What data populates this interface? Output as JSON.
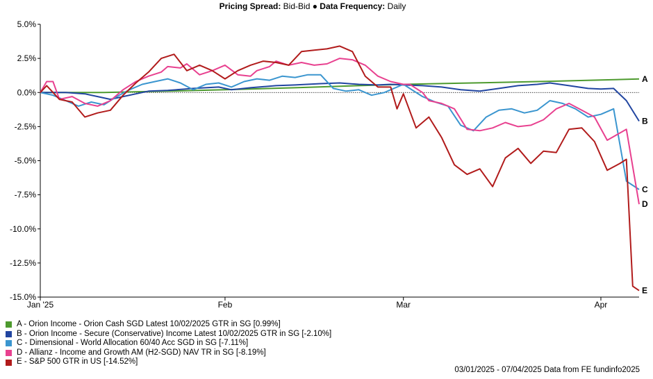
{
  "header": {
    "pricing_label": "Pricing Spread:",
    "pricing_value": " Bid-Bid ● ",
    "frequency_label": "Data Frequency:",
    "frequency_value": " Daily"
  },
  "footer": {
    "text": "03/01/2025 - 07/04/2025 Data from FE fundinfo2025"
  },
  "chart_data": {
    "type": "line",
    "title": "",
    "xlabel": "",
    "ylabel": "",
    "x_ticks": [
      {
        "label": "Jan '25",
        "day": 0
      },
      {
        "label": "Feb",
        "day": 29
      },
      {
        "label": "Mar",
        "day": 57
      },
      {
        "label": "Apr",
        "day": 88
      }
    ],
    "xlim_days": [
      0,
      94
    ],
    "y_ticks": [
      "5.0%",
      "2.5%",
      "0.0%",
      "-2.5%",
      "-5.0%",
      "-7.5%",
      "-10.0%",
      "-12.5%",
      "-15.0%"
    ],
    "ylim": [
      -15,
      5
    ],
    "zero_line": true,
    "series": [
      {
        "letter": "A",
        "name": "A - Orion Income - Orion Cash SGD Latest 10/02/2025 GTR in SG [0.99%]",
        "color": "#4d9a2e",
        "x": [
          0,
          10,
          20,
          29,
          40,
          50,
          57,
          70,
          80,
          88,
          94
        ],
        "y": [
          0.0,
          0.0,
          0.1,
          0.2,
          0.35,
          0.5,
          0.6,
          0.72,
          0.82,
          0.92,
          0.99
        ]
      },
      {
        "letter": "B",
        "name": "B - Orion Income - Secure (Conservative) Income Latest 10/02/2025 GTR in SG [-2.10%]",
        "color": "#2145a0",
        "x": [
          0,
          4,
          7,
          9,
          11,
          13,
          15,
          17,
          20,
          24,
          28,
          30,
          33,
          37,
          40,
          44,
          47,
          50,
          53,
          55,
          57,
          60,
          63,
          66,
          69,
          72,
          75,
          78,
          80,
          83,
          86,
          88,
          90,
          92,
          94
        ],
        "y": [
          0.0,
          0.0,
          -0.1,
          -0.3,
          -0.5,
          -0.3,
          -0.1,
          0.1,
          0.15,
          0.3,
          0.4,
          0.2,
          0.35,
          0.5,
          0.55,
          0.65,
          0.7,
          0.6,
          0.55,
          0.6,
          0.55,
          0.5,
          0.4,
          0.2,
          0.1,
          0.3,
          0.5,
          0.6,
          0.7,
          0.5,
          0.3,
          0.25,
          0.3,
          -0.6,
          -2.1
        ]
      },
      {
        "letter": "C",
        "name": "C - Dimensional - World Allocation 60/40 Acc SGD in SG [-7.11%]",
        "color": "#3a95cf",
        "x": [
          0,
          2,
          4,
          6,
          8,
          10,
          12,
          14,
          16,
          18,
          20,
          22,
          24,
          26,
          28,
          30,
          32,
          34,
          36,
          38,
          40,
          42,
          44,
          46,
          48,
          50,
          52,
          54,
          56,
          57,
          58,
          60,
          62,
          64,
          66,
          68,
          70,
          72,
          74,
          76,
          78,
          80,
          82,
          84,
          86,
          88,
          90,
          92,
          94
        ],
        "y": [
          0,
          -0.2,
          -0.6,
          -1.0,
          -0.7,
          -0.9,
          -0.3,
          0.2,
          0.6,
          0.8,
          1.0,
          0.7,
          0.2,
          0.6,
          0.7,
          0.4,
          0.8,
          1.0,
          0.9,
          1.2,
          1.1,
          1.3,
          1.3,
          0.3,
          0.1,
          0.2,
          -0.2,
          0.0,
          0.4,
          0.6,
          0.3,
          -0.3,
          -0.7,
          -1.0,
          -2.4,
          -2.8,
          -1.8,
          -1.3,
          -1.2,
          -1.5,
          -1.3,
          -0.6,
          -0.8,
          -1.2,
          -1.8,
          -1.6,
          -1.2,
          -6.5,
          -7.11
        ]
      },
      {
        "letter": "D",
        "name": "D - Allianz - Income and Growth AM (H2-SGD) NAV TR in SG [-8.19%]",
        "color": "#e8408f",
        "x": [
          0,
          1,
          2,
          3,
          5,
          7,
          9,
          11,
          13,
          15,
          17,
          19,
          20,
          22,
          23,
          25,
          27,
          29,
          31,
          33,
          34,
          36,
          37,
          39,
          41,
          43,
          45,
          47,
          49,
          51,
          53,
          55,
          57,
          58,
          60,
          61,
          63,
          65,
          67,
          69,
          71,
          73,
          75,
          77,
          79,
          81,
          83,
          85,
          87,
          89,
          92,
          94
        ],
        "y": [
          0,
          0.8,
          0.8,
          -0.5,
          -0.3,
          -0.8,
          -1.0,
          -0.6,
          0.2,
          0.8,
          1.2,
          1.5,
          1.9,
          1.8,
          2.1,
          1.3,
          1.6,
          2.0,
          1.3,
          1.2,
          1.6,
          1.9,
          2.3,
          2.0,
          2.2,
          2.0,
          2.1,
          2.5,
          2.4,
          2.0,
          1.2,
          0.8,
          0.6,
          0.6,
          0.0,
          -0.6,
          -0.8,
          -1.2,
          -2.7,
          -2.8,
          -2.6,
          -2.2,
          -2.5,
          -2.4,
          -2.0,
          -1.2,
          -0.8,
          -1.3,
          -1.8,
          -3.5,
          -2.7,
          -8.19
        ]
      },
      {
        "letter": "E",
        "name": "E - S&P 500 GTR in US [-14.52%]",
        "color": "#b11b1b",
        "x": [
          0,
          1,
          3,
          5,
          7,
          9,
          11,
          13,
          15,
          17,
          19,
          21,
          23,
          25,
          27,
          29,
          31,
          33,
          35,
          37,
          39,
          41,
          43,
          45,
          47,
          49,
          51,
          53,
          55,
          56,
          57,
          59,
          61,
          63,
          65,
          67,
          69,
          71,
          73,
          75,
          77,
          79,
          81,
          83,
          85,
          87,
          89,
          91,
          92,
          93,
          94
        ],
        "y": [
          0,
          0.5,
          -0.5,
          -0.7,
          -1.8,
          -1.5,
          -1.3,
          -0.2,
          0.7,
          1.5,
          2.5,
          2.8,
          1.6,
          2.0,
          1.6,
          1.0,
          1.6,
          2.0,
          2.3,
          2.2,
          2.0,
          3.0,
          3.1,
          3.2,
          3.4,
          3.0,
          1.2,
          0.4,
          0.4,
          -1.2,
          -0.1,
          -2.6,
          -1.8,
          -3.3,
          -5.3,
          -6.0,
          -5.6,
          -6.9,
          -4.8,
          -4.1,
          -5.2,
          -4.3,
          -4.4,
          -2.7,
          -2.6,
          -3.6,
          -5.7,
          -5.2,
          -4.9,
          -14.2,
          -14.52
        ]
      }
    ]
  }
}
